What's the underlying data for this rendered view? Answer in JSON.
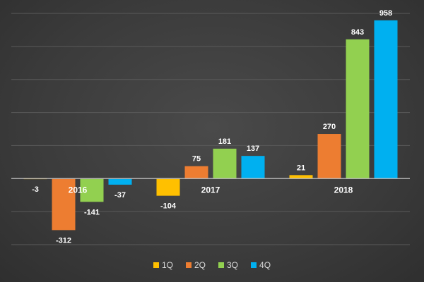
{
  "chart_data": {
    "type": "bar",
    "categories": [
      "2016",
      "2017",
      "2018"
    ],
    "series": [
      {
        "name": "1Q",
        "color": "#ffc000",
        "values": [
          -3,
          -104,
          21
        ]
      },
      {
        "name": "2Q",
        "color": "#ed7d31",
        "values": [
          -312,
          75,
          270
        ]
      },
      {
        "name": "3Q",
        "color": "#92d050",
        "values": [
          -141,
          181,
          843
        ]
      },
      {
        "name": "4Q",
        "color": "#00b0f0",
        "values": [
          -37,
          137,
          958
        ]
      }
    ],
    "ylim": [
      -400,
      1000
    ],
    "ytick_step": 200,
    "grid": true,
    "legend_position": "bottom"
  },
  "colors": {
    "gridline": "#5a5a5a",
    "zero_line": "#bfbfbf",
    "label_text": "#ffffff"
  }
}
